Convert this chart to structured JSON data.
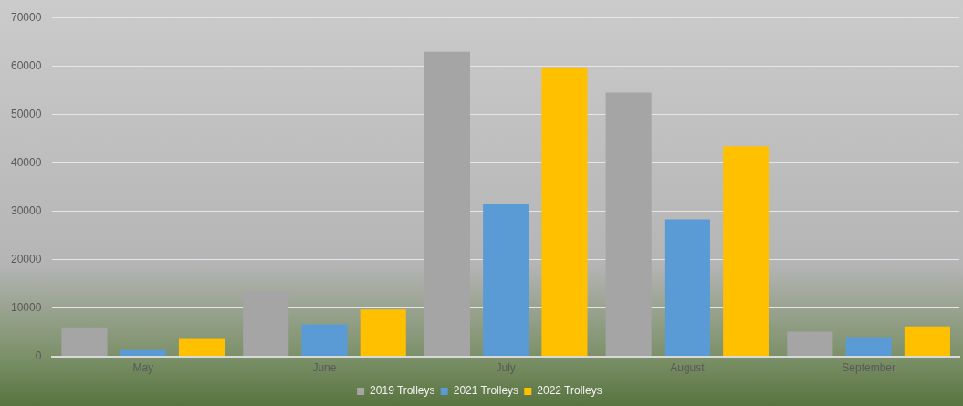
{
  "chart_data": {
    "type": "bar",
    "categories": [
      "May",
      "June",
      "July",
      "August",
      "September"
    ],
    "series": [
      {
        "name": "2019 Trolleys",
        "color": "#a5a5a5",
        "values": [
          6000,
          13500,
          62900,
          54500,
          5100
        ]
      },
      {
        "name": "2021 Trolleys",
        "color": "#5b9bd5",
        "values": [
          1300,
          6600,
          31400,
          28300,
          4000
        ]
      },
      {
        "name": "2022 Trolleys",
        "color": "#ffc000",
        "values": [
          3600,
          9700,
          59700,
          43400,
          6200
        ]
      }
    ],
    "ylim": [
      0,
      70000
    ],
    "yticks": [
      0,
      10000,
      20000,
      30000,
      40000,
      50000,
      60000,
      70000
    ],
    "grid": "y",
    "legend": "bottom"
  }
}
